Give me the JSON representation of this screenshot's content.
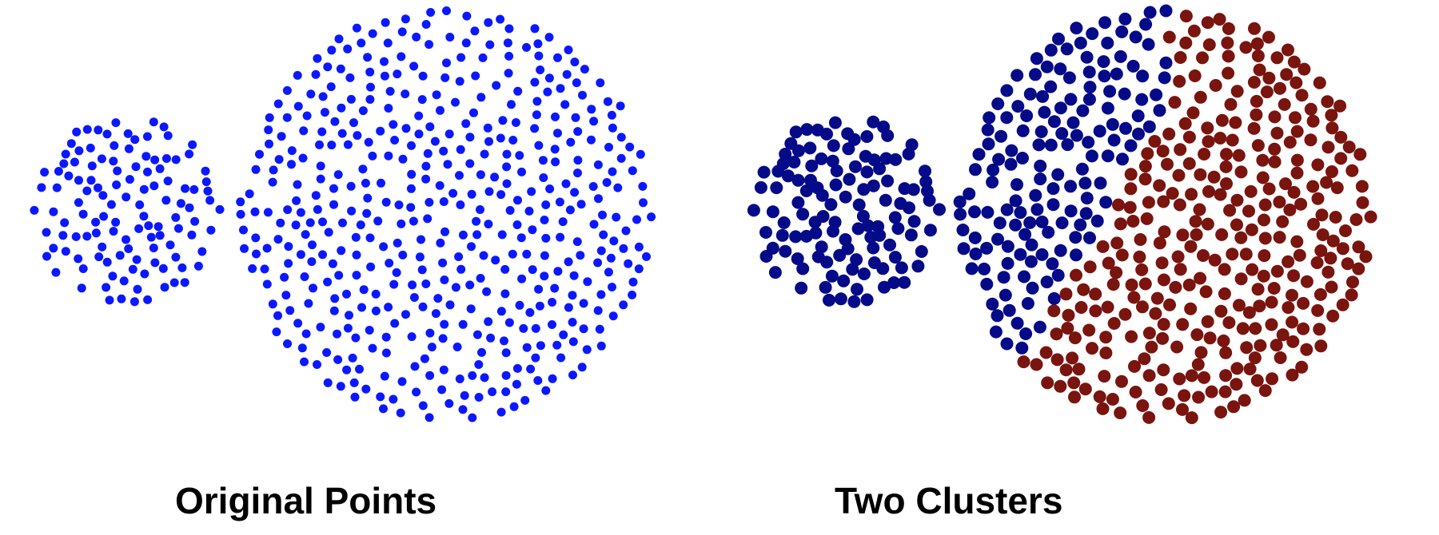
{
  "panels": [
    {
      "caption": "Original Points",
      "point_color": "#0b18ff"
    },
    {
      "caption": "Two Clusters",
      "cluster_colors": [
        "#040a88",
        "#7a140e"
      ]
    }
  ]
}
